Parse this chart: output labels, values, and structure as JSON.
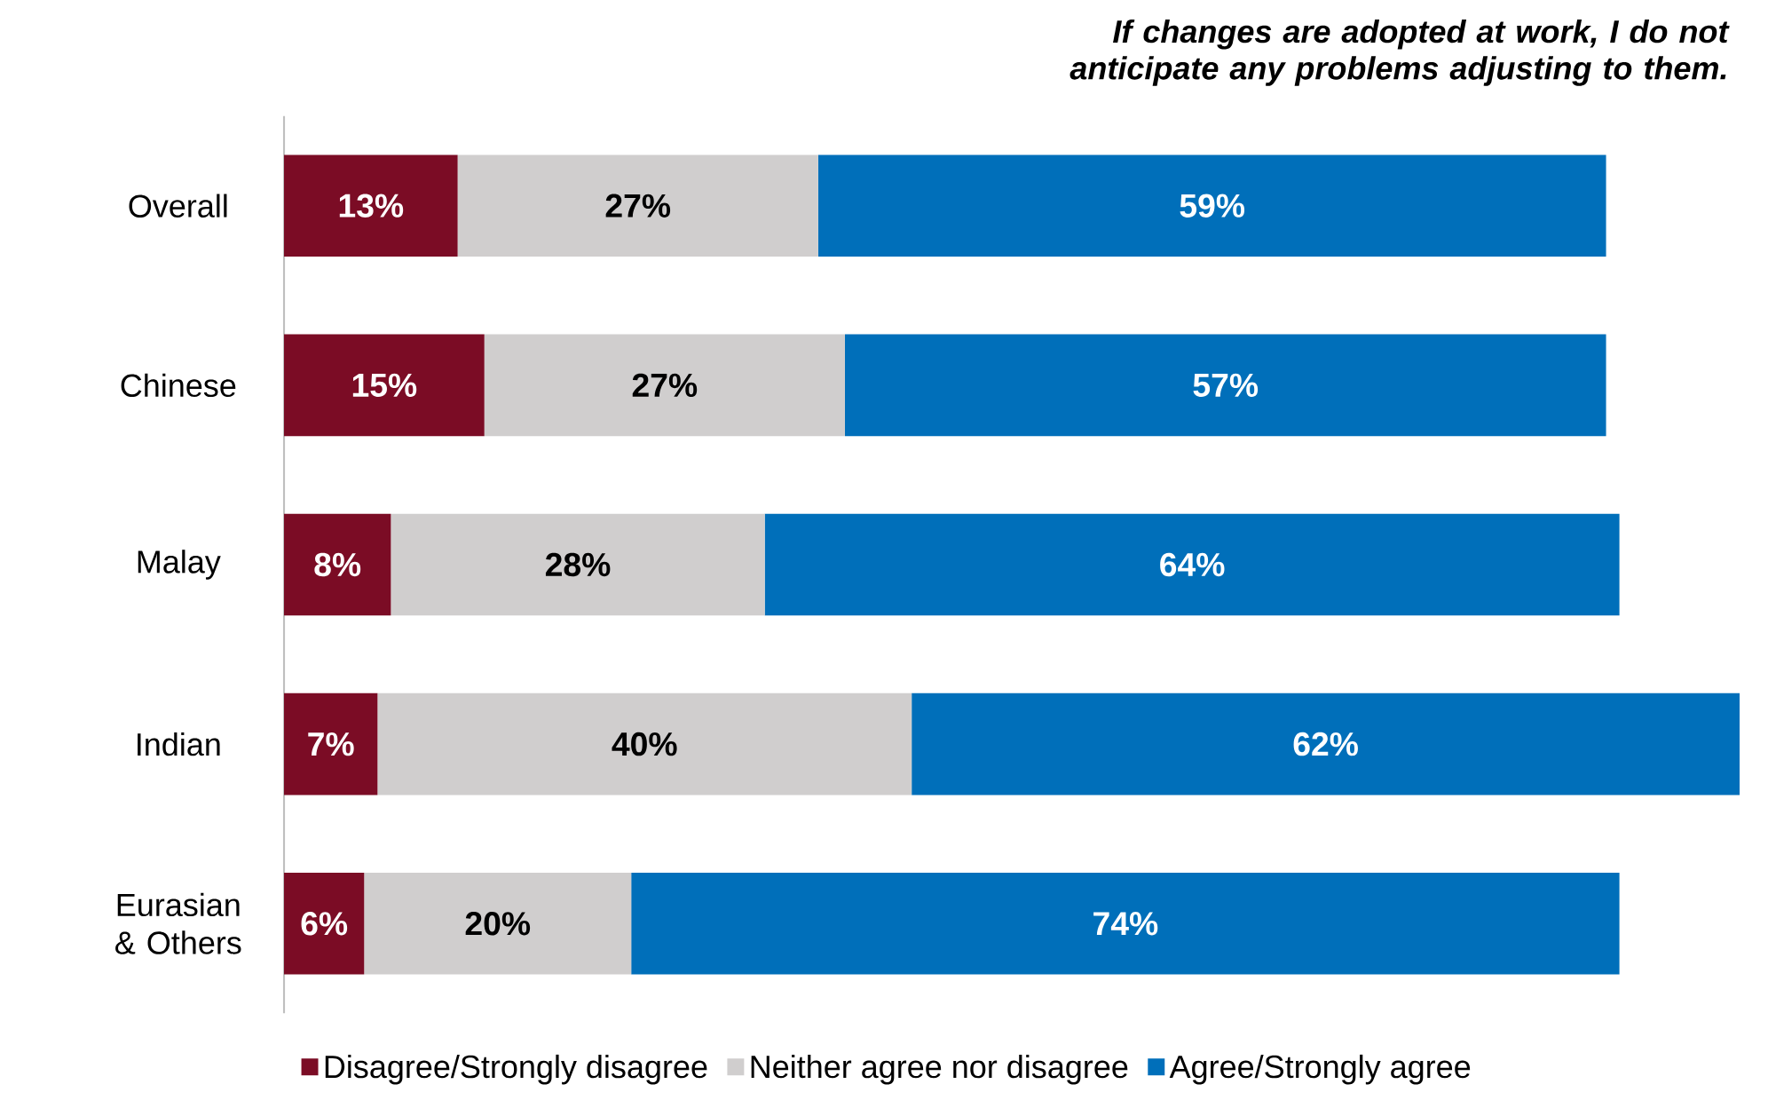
{
  "chart_data": {
    "type": "bar",
    "orientation": "horizontal",
    "stacked": true,
    "title": "If changes are adopted at work, I do not anticipate any problems adjusting to them.",
    "categories": [
      "Overall",
      "Chinese",
      "Malay",
      "Indian",
      "Eurasian & Others"
    ],
    "series": [
      {
        "name": "Disagree/Strongly disagree",
        "color": "#7b0c25",
        "values": [
          13,
          15,
          8,
          7,
          6
        ],
        "value_labels": [
          "13%",
          "15%",
          "8%",
          "7%",
          "6%"
        ]
      },
      {
        "name": "Neither agree nor disagree",
        "color": "#d0cece",
        "values": [
          27,
          27,
          28,
          40,
          20
        ],
        "value_labels": [
          "27%",
          "27%",
          "28%",
          "40%",
          "20%"
        ]
      },
      {
        "name": "Agree/Strongly agree",
        "color": "#006fba",
        "values": [
          59,
          57,
          64,
          62,
          74
        ],
        "value_labels": [
          "59%",
          "57%",
          "64%",
          "62%",
          "74%"
        ]
      }
    ],
    "legend": "bottom",
    "tick_labels": "y",
    "grid": false
  }
}
